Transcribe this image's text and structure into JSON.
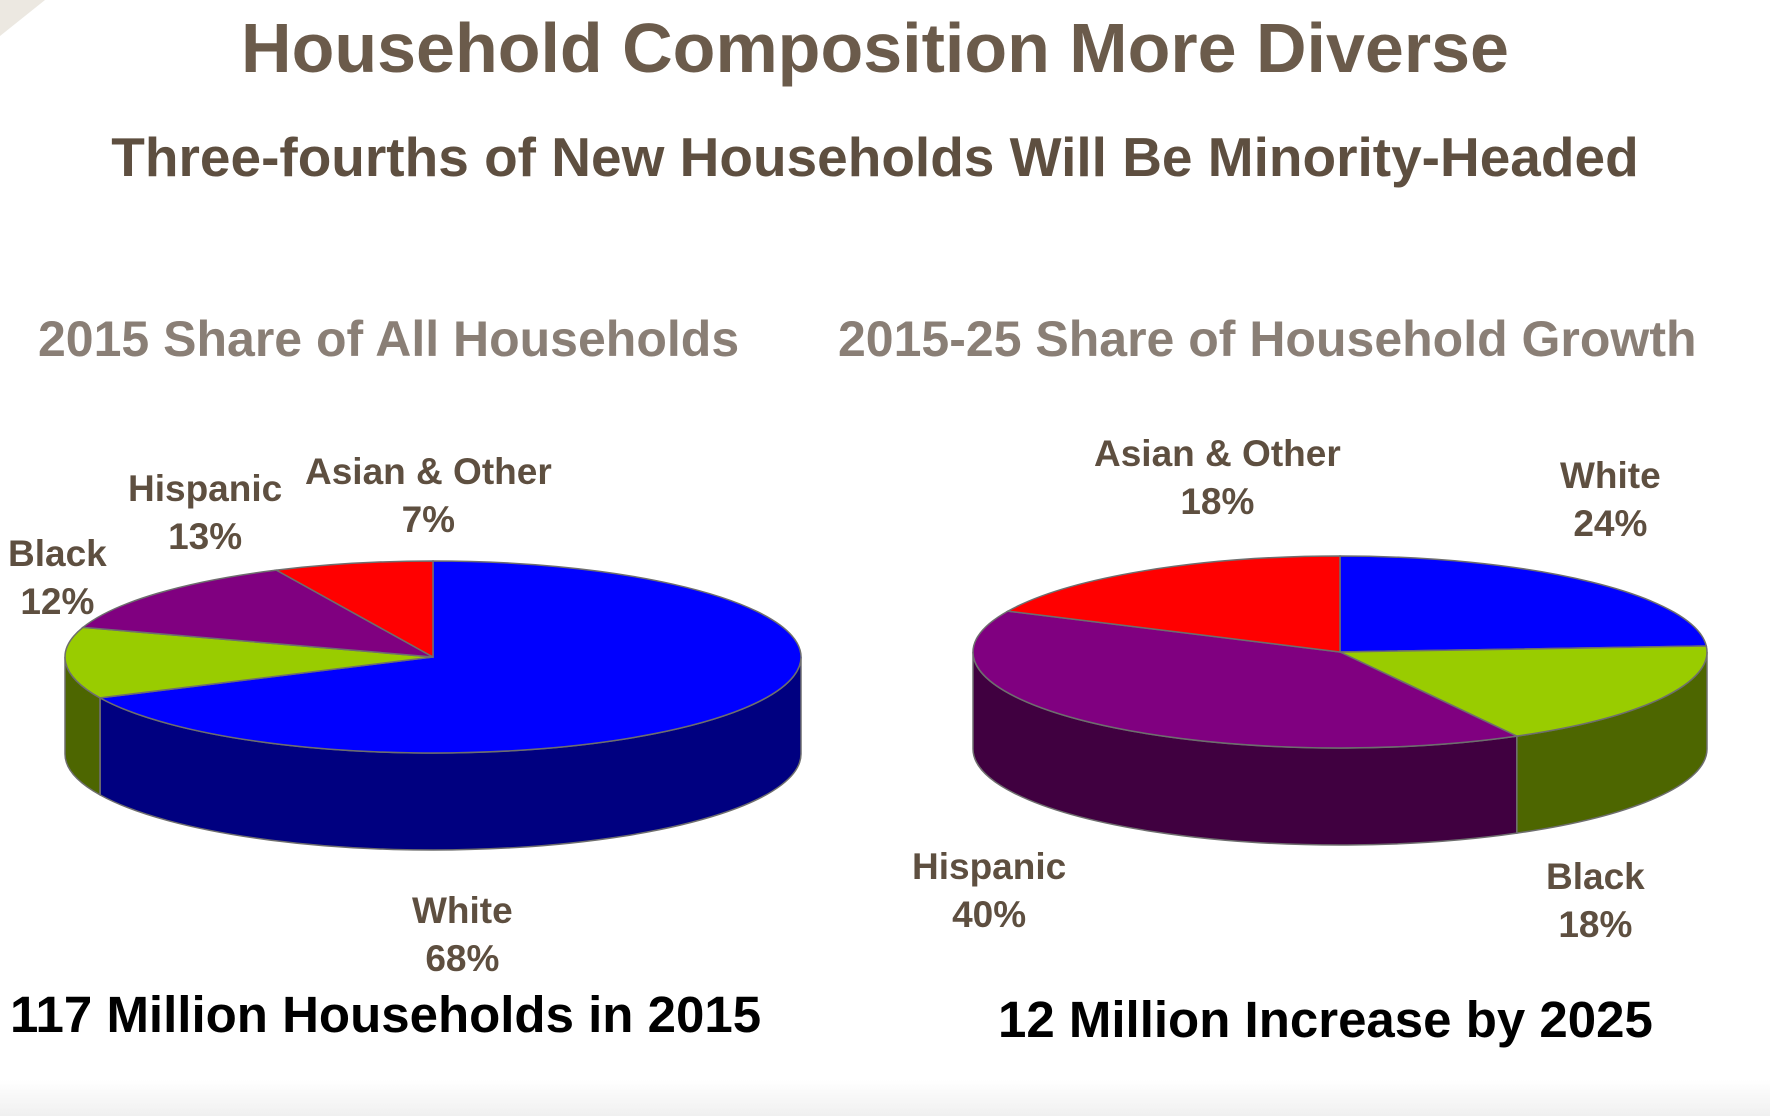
{
  "title": "Household Composition More Diverse",
  "subtitle": "Three-fourths of New Households Will Be Minority-Headed",
  "colors": {
    "title": "#6b5b4b",
    "chart_heading": "#8a7f76",
    "label": "#5e4f40",
    "summary": "#000000"
  },
  "chart_data": [
    {
      "type": "pie",
      "style": "3d",
      "title": "2015 Share of All Households",
      "unit": "%",
      "summary": "117 Million Households in 2015",
      "slices": [
        {
          "key": "white",
          "label": "White",
          "value": 68,
          "value_label": "68%",
          "color": "#0000ff",
          "side_color": "#000080"
        },
        {
          "key": "black",
          "label": "Black",
          "value": 12,
          "value_label": "12%",
          "color": "#99cc00",
          "side_color": "#4d6600"
        },
        {
          "key": "hispanic",
          "label": "Hispanic",
          "value": 13,
          "value_label": "13%",
          "color": "#800080",
          "side_color": "#400040"
        },
        {
          "key": "asian_other",
          "label": "Asian & Other",
          "value": 7,
          "value_label": "7%",
          "color": "#ff0000",
          "side_color": "#800000"
        }
      ]
    },
    {
      "type": "pie",
      "style": "3d",
      "title": "2015-25 Share of Household Growth",
      "unit": "%",
      "summary": "12 Million Increase by 2025",
      "slices": [
        {
          "key": "white",
          "label": "White",
          "value": 24,
          "value_label": "24%",
          "color": "#0000ff",
          "side_color": "#000080"
        },
        {
          "key": "black",
          "label": "Black",
          "value": 18,
          "value_label": "18%",
          "color": "#99cc00",
          "side_color": "#4d6600"
        },
        {
          "key": "hispanic",
          "label": "Hispanic",
          "value": 40,
          "value_label": "40%",
          "color": "#800080",
          "side_color": "#400040"
        },
        {
          "key": "asian_other",
          "label": "Asian & Other",
          "value": 18,
          "value_label": "18%",
          "color": "#ff0000",
          "side_color": "#800000"
        }
      ]
    }
  ]
}
